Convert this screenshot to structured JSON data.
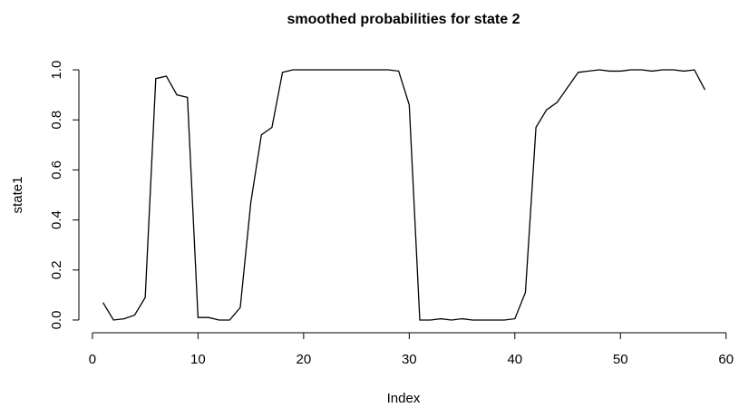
{
  "chart_data": {
    "type": "line",
    "title": "smoothed probabilities for state 2",
    "x_label": "Index",
    "y_label": "state1",
    "x": [
      1,
      2,
      3,
      4,
      5,
      6,
      7,
      8,
      9,
      10,
      11,
      12,
      13,
      14,
      15,
      16,
      17,
      18,
      19,
      20,
      21,
      22,
      23,
      24,
      25,
      26,
      27,
      28,
      29,
      30,
      31,
      32,
      33,
      34,
      35,
      36,
      37,
      38,
      39,
      40,
      41,
      42,
      43,
      44,
      45,
      46,
      47,
      48,
      49,
      50,
      51,
      52,
      53,
      54,
      55,
      56,
      57,
      58
    ],
    "values": [
      0.07,
      0.0,
      0.005,
      0.02,
      0.09,
      0.965,
      0.975,
      0.9,
      0.89,
      0.01,
      0.01,
      0.0,
      0.0,
      0.05,
      0.47,
      0.74,
      0.77,
      0.99,
      1.0,
      1.0,
      1.0,
      1.0,
      1.0,
      1.0,
      1.0,
      1.0,
      1.0,
      1.0,
      0.995,
      0.86,
      0.0,
      0.0,
      0.005,
      0.0,
      0.005,
      0.0,
      0.0,
      0.0,
      0.0,
      0.005,
      0.11,
      0.77,
      0.84,
      0.87,
      0.93,
      0.99,
      0.995,
      1.0,
      0.995,
      0.995,
      1.0,
      1.0,
      0.995,
      1.0,
      1.0,
      0.995,
      1.0,
      0.92
    ],
    "color": "#000000",
    "xlim": [
      -1.28,
      60.28
    ],
    "ylim": [
      -0.04,
      1.04
    ],
    "xticks": [
      0,
      10,
      20,
      30,
      40,
      50,
      60
    ],
    "yticks": [
      {
        "value": 0,
        "label": "0.0"
      },
      0.2,
      0.4,
      0.6,
      0.8,
      {
        "value": 1,
        "label": "1.0"
      }
    ]
  }
}
